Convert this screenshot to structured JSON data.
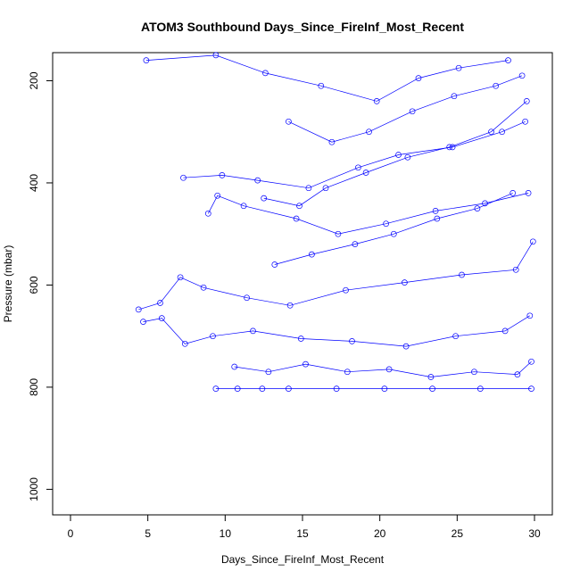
{
  "chart_data": {
    "type": "line",
    "title": "ATOM3 Southbound Days_Since_FireInf_Most_Recent",
    "xlabel": "Days_Since_FireInf_Most_Recent",
    "ylabel": "Pressure (mbar)",
    "xlim": [
      0,
      30
    ],
    "ylim": [
      1050,
      145
    ],
    "y_reversed": true,
    "x_ticks": [
      0,
      5,
      10,
      15,
      20,
      25,
      30
    ],
    "y_ticks": [
      200,
      400,
      600,
      800,
      1000
    ],
    "grid": false,
    "series_color": "#0000ff",
    "markers": "open-circle",
    "note_density": "dense connected profiles; points concentrated between x 15-30 and pressure 150-810 mbar",
    "series": [
      {
        "x": [
          4.9,
          9.4,
          12.6,
          16.2,
          19.8,
          22.5,
          25.1,
          28.3
        ],
        "y": [
          160,
          150,
          185,
          210,
          240,
          195,
          175,
          160
        ]
      },
      {
        "x": [
          7.3,
          9.8,
          12.1,
          15.4,
          18.6,
          21.2,
          24.7,
          27.9,
          29.4
        ],
        "y": [
          390,
          385,
          395,
          410,
          370,
          345,
          330,
          300,
          280
        ]
      },
      {
        "x": [
          8.9,
          9.5,
          11.2,
          14.6,
          17.3,
          20.4,
          23.6,
          26.8,
          29.6
        ],
        "y": [
          460,
          425,
          445,
          470,
          500,
          480,
          455,
          440,
          420
        ]
      },
      {
        "x": [
          4.4,
          5.8,
          7.1,
          8.6,
          11.4,
          14.2,
          17.8,
          21.6,
          25.3,
          28.8,
          29.9
        ],
        "y": [
          648,
          635,
          585,
          605,
          625,
          640,
          610,
          595,
          580,
          570,
          515
        ]
      },
      {
        "x": [
          4.7,
          5.9,
          7.4,
          9.2,
          11.8,
          14.9,
          18.2,
          21.7,
          24.9,
          28.1,
          29.7
        ],
        "y": [
          672,
          665,
          715,
          700,
          690,
          705,
          710,
          720,
          700,
          690,
          660
        ]
      },
      {
        "x": [
          9.4,
          10.8,
          12.4,
          14.1,
          17.2,
          20.3,
          23.4,
          26.5,
          29.8
        ],
        "y": [
          803,
          803,
          803,
          803,
          803,
          803,
          803,
          803,
          803
        ]
      },
      {
        "x": [
          10.6,
          12.8,
          15.2,
          17.9,
          20.6,
          23.3,
          26.1,
          28.9,
          29.8
        ],
        "y": [
          760,
          770,
          755,
          770,
          765,
          780,
          770,
          775,
          750
        ]
      },
      {
        "x": [
          12.5,
          14.8,
          16.5,
          19.1,
          21.8,
          24.5,
          27.2,
          29.5
        ],
        "y": [
          430,
          445,
          410,
          380,
          350,
          330,
          300,
          240
        ]
      },
      {
        "x": [
          13.2,
          15.6,
          18.4,
          20.9,
          23.7,
          26.3,
          28.6
        ],
        "y": [
          560,
          540,
          520,
          500,
          470,
          450,
          420
        ]
      },
      {
        "x": [
          14.1,
          16.9,
          19.3,
          22.1,
          24.8,
          27.5,
          29.2
        ],
        "y": [
          280,
          320,
          300,
          260,
          230,
          210,
          190
        ]
      }
    ]
  }
}
